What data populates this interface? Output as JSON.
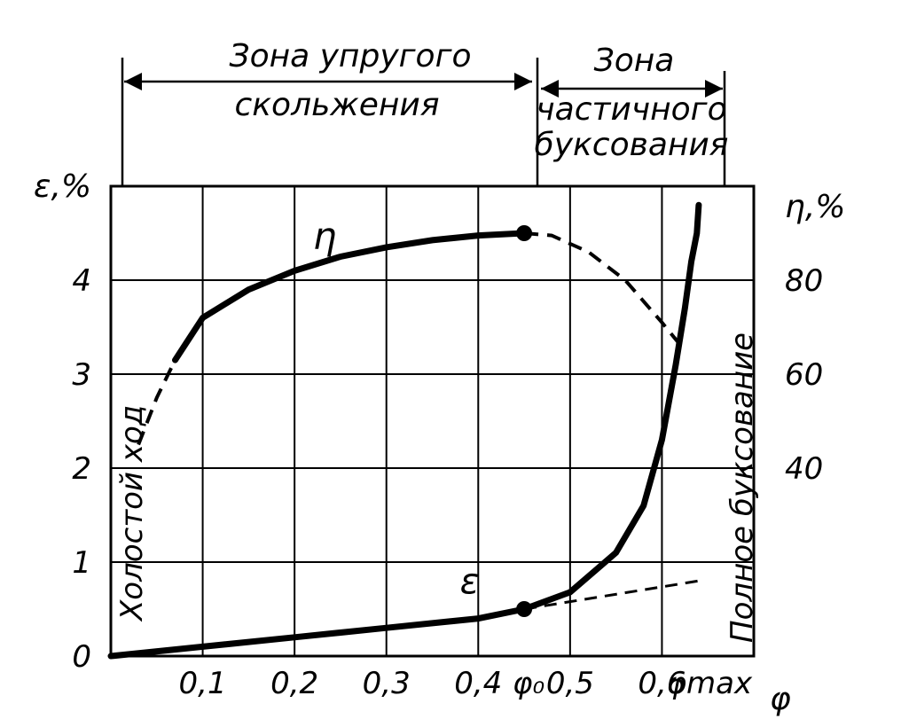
{
  "chart_data": {
    "type": "line",
    "zones": {
      "elastic": "Зона упругого скольжения",
      "elastic_line1": "Зона упругого",
      "elastic_line2": "скольжения",
      "partial": "Зона частичного буксования",
      "partial_line1": "Зона",
      "partial_line2": "частичного",
      "partial_line3": "буксования"
    },
    "side_labels": {
      "left": "Холостой ход",
      "right": "Полное буксование"
    },
    "axes": {
      "y_left_label": "ε,%",
      "y_right_label": "η,%",
      "x_label": "φ",
      "x_ticks": [
        "0,1",
        "0,2",
        "0,3",
        "0,4",
        "0,5",
        "0,6"
      ],
      "x_special": {
        "phi0": "φ₀",
        "phimax": "φmax"
      },
      "y_left_ticks": [
        "0",
        "1",
        "2",
        "3",
        "4"
      ],
      "y_right_ticks": [
        "40",
        "60",
        "80"
      ],
      "xlim": [
        0,
        0.7
      ],
      "y_left_lim": [
        0,
        5
      ],
      "y_right_lim": [
        0,
        100
      ],
      "grid": true
    },
    "key_points": {
      "phi0": 0.45,
      "phimax": 0.64
    },
    "series": [
      {
        "name": "η",
        "axis": "right",
        "solid": [
          [
            0.07,
            63
          ],
          [
            0.1,
            72
          ],
          [
            0.15,
            78
          ],
          [
            0.2,
            82
          ],
          [
            0.25,
            85
          ],
          [
            0.3,
            87
          ],
          [
            0.35,
            88.5
          ],
          [
            0.4,
            89.5
          ],
          [
            0.45,
            90
          ]
        ],
        "dashed_left": [
          [
            0.03,
            45
          ],
          [
            0.05,
            55
          ],
          [
            0.07,
            63
          ]
        ],
        "dashed_right": [
          [
            0.45,
            90
          ],
          [
            0.48,
            89.5
          ],
          [
            0.52,
            86
          ],
          [
            0.56,
            80
          ],
          [
            0.6,
            71
          ],
          [
            0.625,
            65
          ]
        ],
        "solid_right_tail": [
          [
            0.625,
            65
          ],
          [
            0.632,
            62
          ]
        ]
      },
      {
        "name": "ε",
        "axis": "left",
        "solid": [
          [
            0.0,
            0.0
          ],
          [
            0.1,
            0.1
          ],
          [
            0.2,
            0.2
          ],
          [
            0.3,
            0.3
          ],
          [
            0.4,
            0.4
          ],
          [
            0.45,
            0.5
          ],
          [
            0.5,
            0.68
          ],
          [
            0.55,
            1.1
          ],
          [
            0.58,
            1.6
          ],
          [
            0.6,
            2.3
          ],
          [
            0.615,
            3.1
          ],
          [
            0.625,
            3.7
          ],
          [
            0.632,
            4.2
          ],
          [
            0.638,
            4.5
          ],
          [
            0.64,
            4.8
          ]
        ],
        "dashed": [
          [
            0.45,
            0.5
          ],
          [
            0.64,
            0.8
          ]
        ]
      }
    ]
  }
}
